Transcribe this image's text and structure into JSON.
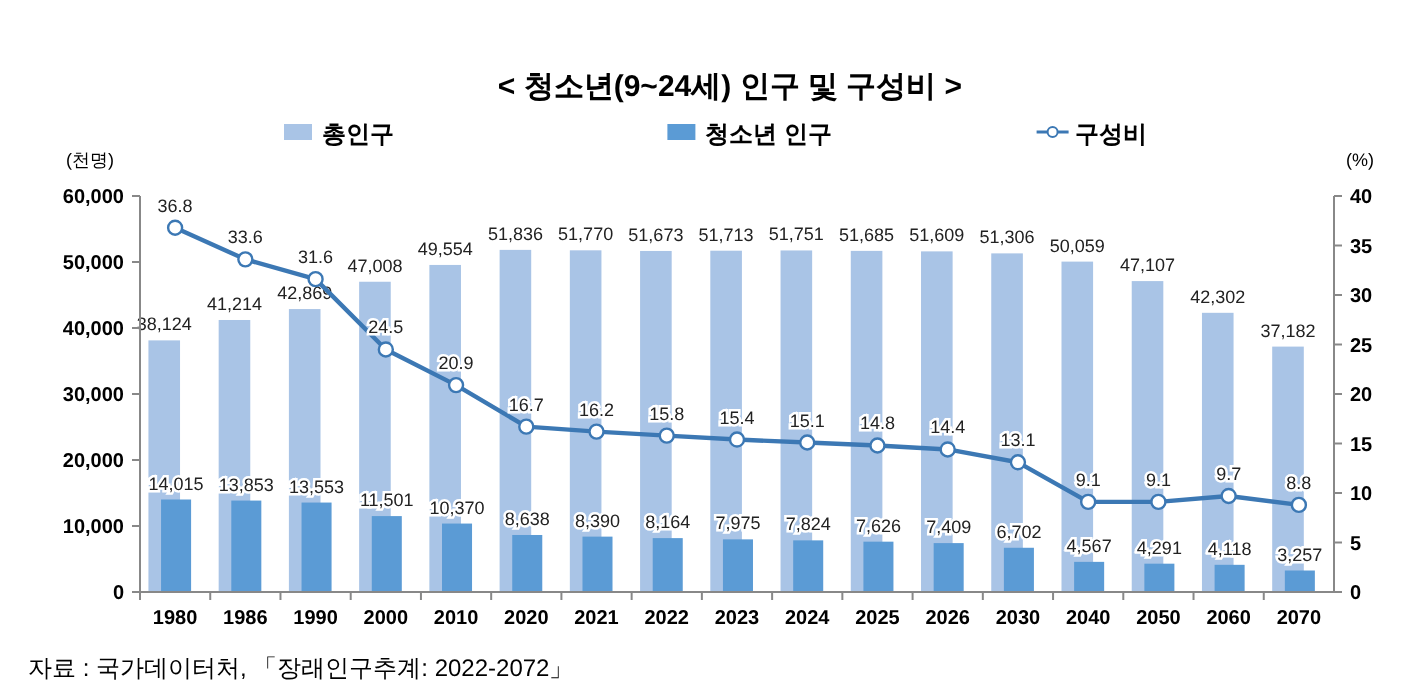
{
  "chart_data": {
    "type": "bar",
    "title": "< 청소년(9~24세) 인구 및 구성비 >",
    "categories": [
      "1980",
      "1986",
      "1990",
      "2000",
      "2010",
      "2020",
      "2021",
      "2022",
      "2023",
      "2024",
      "2025",
      "2026",
      "2030",
      "2040",
      "2050",
      "2060",
      "2070"
    ],
    "series": [
      {
        "name": "총인구",
        "color": "#a9c4e6",
        "values": [
          38124,
          41214,
          42869,
          47008,
          49554,
          51836,
          51770,
          51673,
          51713,
          51751,
          51685,
          51609,
          51306,
          50059,
          47107,
          42302,
          37182
        ],
        "value_labels": [
          "38,124",
          "41,214",
          "42,869",
          "47,008",
          "49,554",
          "51,836",
          "51,770",
          "51,673",
          "51,713",
          "51,751",
          "51,685",
          "51,609",
          "51,306",
          "50,059",
          "47,107",
          "42,302",
          "37,182"
        ]
      },
      {
        "name": "청소년 인구",
        "color": "#5b9bd5",
        "values": [
          14015,
          13853,
          13553,
          11501,
          10370,
          8638,
          8390,
          8164,
          7975,
          7824,
          7626,
          7409,
          6702,
          4567,
          4291,
          4118,
          3257
        ],
        "value_labels": [
          "14,015",
          "13,853",
          "13,553",
          "11,501",
          "10,370",
          "8,638",
          "8,390",
          "8,164",
          "7,975",
          "7,824",
          "7,626",
          "7,409",
          "6,702",
          "4,567",
          "4,291",
          "4,118",
          "3,257"
        ]
      },
      {
        "name": "구성비",
        "type": "line",
        "axis": "y2",
        "color": "#3c78b4",
        "marker": "circle",
        "values": [
          36.8,
          33.6,
          31.6,
          24.5,
          20.9,
          16.7,
          16.2,
          15.8,
          15.4,
          15.1,
          14.8,
          14.4,
          13.1,
          9.1,
          9.1,
          9.7,
          8.8
        ]
      }
    ],
    "ylabel": "(천명)",
    "y2label": "(%)",
    "ylim": [
      0,
      60000
    ],
    "yticks": [
      {
        "value": 0,
        "label": "0"
      },
      {
        "value": 10000,
        "label": "10,000"
      },
      {
        "value": 20000,
        "label": "20,000"
      },
      {
        "value": 30000,
        "label": "30,000"
      },
      {
        "value": 40000,
        "label": "40,000"
      },
      {
        "value": 50000,
        "label": "50,000"
      },
      {
        "value": 60000,
        "label": "60,000"
      }
    ],
    "y2lim": [
      0,
      40
    ],
    "y2ticks": [
      0,
      5,
      10,
      15,
      20,
      25,
      30,
      35,
      40
    ],
    "data_labels": true,
    "legend": "top",
    "grid": false,
    "annotations": [
      "자료 : 국가데이터처, 「장래인구추계: 2022-2072」"
    ]
  }
}
